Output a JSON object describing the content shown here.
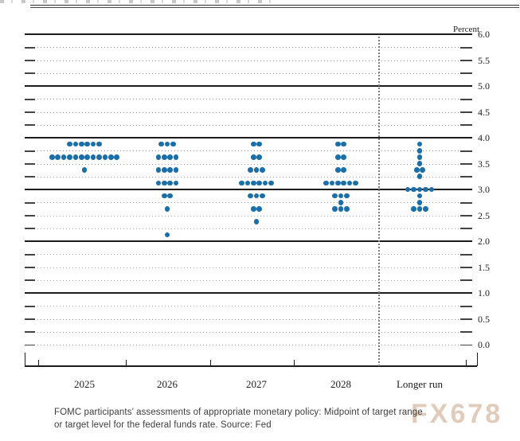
{
  "axis": {
    "percent_label": "Percent",
    "y_tick_labels": [
      "6.0",
      "5.5",
      "5.0",
      "4.5",
      "4.0",
      "3.5",
      "3.0",
      "2.5",
      "2.0",
      "1.5",
      "1.0",
      "0.5",
      "0.0"
    ]
  },
  "chart_data": {
    "type": "scatter",
    "subtype": "fomc-dot-plot",
    "ylabel": "Percent",
    "ylim": [
      0.0,
      6.0
    ],
    "y_grid_step": 0.25,
    "y_label_step": 0.5,
    "solid_gridlines": [
      6.0,
      5.0,
      4.0,
      3.0,
      2.0,
      1.0
    ],
    "grid": true,
    "legend": "none",
    "categories": [
      "2025",
      "2026",
      "2027",
      "2028",
      "Longer run"
    ],
    "divider_before_category": "Longer run",
    "dot_color": "#1b6fa8",
    "distributions": [
      {
        "category": "2025",
        "dots": [
          {
            "rate": 3.875,
            "count": 6
          },
          {
            "rate": 3.625,
            "count": 12
          },
          {
            "rate": 3.375,
            "count": 1
          }
        ]
      },
      {
        "category": "2026",
        "dots": [
          {
            "rate": 3.875,
            "count": 3
          },
          {
            "rate": 3.625,
            "count": 4
          },
          {
            "rate": 3.375,
            "count": 4
          },
          {
            "rate": 3.125,
            "count": 4
          },
          {
            "rate": 2.875,
            "count": 2
          },
          {
            "rate": 2.625,
            "count": 1
          },
          {
            "rate": 2.125,
            "count": 1
          }
        ]
      },
      {
        "category": "2027",
        "dots": [
          {
            "rate": 3.875,
            "count": 2
          },
          {
            "rate": 3.625,
            "count": 2
          },
          {
            "rate": 3.375,
            "count": 3
          },
          {
            "rate": 3.125,
            "count": 6
          },
          {
            "rate": 2.875,
            "count": 3
          },
          {
            "rate": 2.625,
            "count": 2
          },
          {
            "rate": 2.375,
            "count": 1
          }
        ]
      },
      {
        "category": "2028",
        "dots": [
          {
            "rate": 3.875,
            "count": 2
          },
          {
            "rate": 3.625,
            "count": 2
          },
          {
            "rate": 3.375,
            "count": 2
          },
          {
            "rate": 3.125,
            "count": 6
          },
          {
            "rate": 2.875,
            "count": 3
          },
          {
            "rate": 2.75,
            "count": 1
          },
          {
            "rate": 2.625,
            "count": 3
          }
        ]
      },
      {
        "category": "Longer run",
        "dots": [
          {
            "rate": 3.875,
            "count": 1
          },
          {
            "rate": 3.75,
            "count": 1
          },
          {
            "rate": 3.625,
            "count": 1
          },
          {
            "rate": 3.5,
            "count": 1
          },
          {
            "rate": 3.375,
            "count": 2
          },
          {
            "rate": 3.25,
            "count": 1
          },
          {
            "rate": 3.0,
            "count": 5
          },
          {
            "rate": 2.875,
            "count": 1
          },
          {
            "rate": 2.75,
            "count": 1
          },
          {
            "rate": 2.625,
            "count": 3
          }
        ]
      }
    ]
  },
  "caption": {
    "line1": "FOMC participants’ assessments of appropriate monetary policy: Midpoint of target range",
    "line2": "or target level for the federal funds rate. Source: Fed"
  },
  "watermark": "FX678"
}
